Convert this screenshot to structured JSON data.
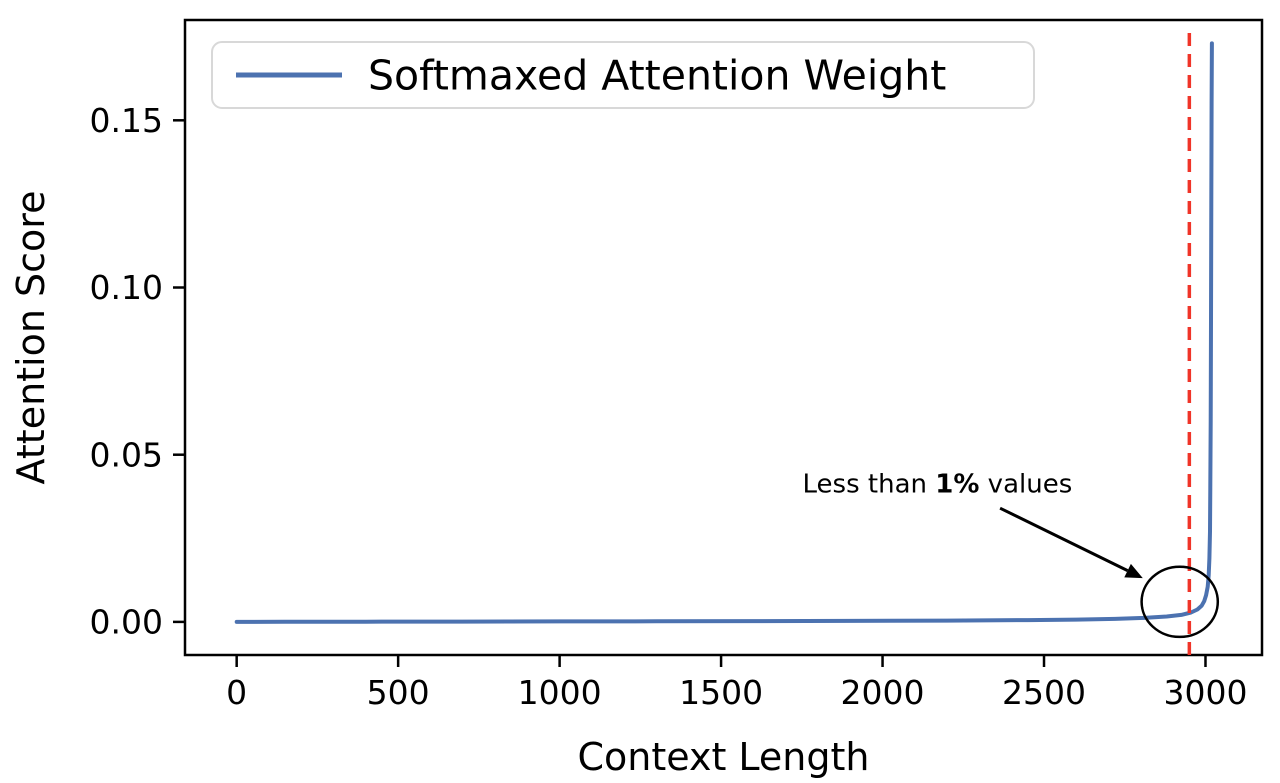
{
  "chart_data": {
    "type": "line",
    "title": "",
    "xlabel": "Context Length",
    "ylabel": "Attention Score",
    "xlim": [
      -160,
      3175
    ],
    "ylim": [
      -0.0099,
      0.18
    ],
    "xticks": [
      0,
      500,
      1000,
      1500,
      2000,
      2500,
      3000
    ],
    "xtick_labels": [
      "0",
      "500",
      "1000",
      "1500",
      "2000",
      "2500",
      "3000"
    ],
    "yticks": [
      0.0,
      0.05,
      0.1,
      0.15
    ],
    "ytick_labels": [
      "0.00",
      "0.05",
      "0.10",
      "0.15"
    ],
    "grid": false,
    "legend": {
      "position": "upper left",
      "entries": [
        "Softmaxed Attention Weight"
      ]
    },
    "series": [
      {
        "name": "Softmaxed Attention Weight",
        "color": "#4c72b0",
        "points": [
          [
            0,
            0.0
          ],
          [
            150,
            4e-05
          ],
          [
            400,
            7e-05
          ],
          [
            700,
            0.0001
          ],
          [
            1000,
            0.00014
          ],
          [
            1300,
            0.00018
          ],
          [
            1600,
            0.00024
          ],
          [
            1900,
            0.0003
          ],
          [
            2200,
            0.0004
          ],
          [
            2450,
            0.00055
          ],
          [
            2600,
            0.0007
          ],
          [
            2720,
            0.0009
          ],
          [
            2810,
            0.0012
          ],
          [
            2880,
            0.0016
          ],
          [
            2925,
            0.0021
          ],
          [
            2955,
            0.0028
          ],
          [
            2975,
            0.0037
          ],
          [
            2988,
            0.0048
          ],
          [
            2996,
            0.0062
          ],
          [
            3002,
            0.008
          ],
          [
            3007,
            0.0105
          ],
          [
            3010,
            0.014
          ],
          [
            3012,
            0.019
          ],
          [
            3014,
            0.027
          ],
          [
            3015,
            0.04
          ],
          [
            3016,
            0.06
          ],
          [
            3017,
            0.09
          ],
          [
            3018,
            0.125
          ],
          [
            3019,
            0.155
          ],
          [
            3020,
            0.173
          ]
        ]
      }
    ],
    "vline": {
      "x": 2950,
      "color": "#f03428",
      "style": "dashed"
    },
    "annotation": {
      "parts": [
        {
          "text": "Less than ",
          "bold": false
        },
        {
          "text": "1%",
          "bold": true
        },
        {
          "text": " values",
          "bold": false
        }
      ],
      "text_pos": [
        2170,
        0.0387
      ],
      "arrow": {
        "from": [
          2364,
          0.034
        ],
        "to": [
          2806,
          0.0131
        ]
      },
      "circle": {
        "cx": 2920,
        "cy": 0.006,
        "rx": 118,
        "ry": 0.0105
      }
    },
    "colors": {
      "axis": "#000000",
      "background": "#ffffff",
      "legend_border": "#d8d8d8",
      "annotation": "#000000"
    }
  }
}
